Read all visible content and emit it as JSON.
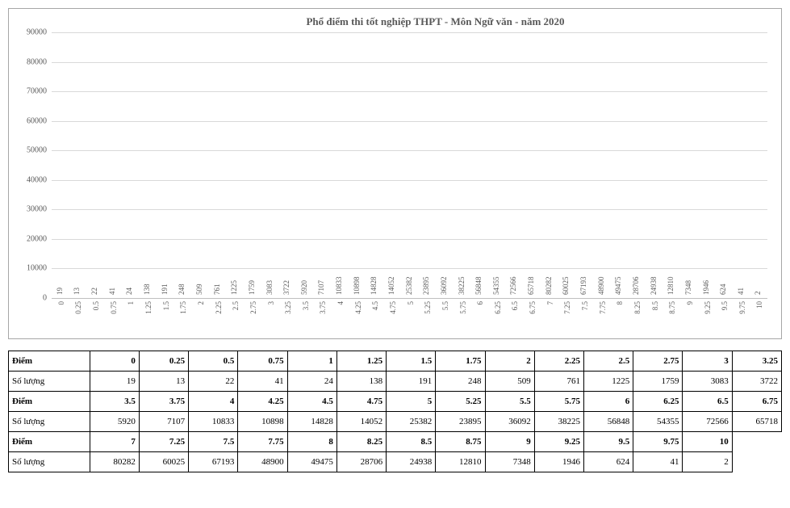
{
  "chart": {
    "type": "bar",
    "title": "Phổ điểm thi tốt nghiệp THPT - Môn Ngữ văn - năm 2020",
    "title_fontsize": 13,
    "title_color": "#595959",
    "bar_color": "#4472c4",
    "grid_color": "#d9d9d9",
    "axis_color": "#bfbfbf",
    "tick_color": "#595959",
    "background_color": "#ffffff",
    "y_max": 90000,
    "y_tick_step": 10000,
    "y_ticks": [
      0,
      10000,
      20000,
      30000,
      40000,
      50000,
      60000,
      70000,
      80000,
      90000
    ],
    "categories": [
      "0",
      "0.25",
      "0.5",
      "0.75",
      "1",
      "1.25",
      "1.5",
      "1.75",
      "2",
      "2.25",
      "2.5",
      "2.75",
      "3",
      "3.25",
      "3.5",
      "3.75",
      "4",
      "4.25",
      "4.5",
      "4.75",
      "5",
      "5.25",
      "5.5",
      "5.75",
      "6",
      "6.25",
      "6.5",
      "6.75",
      "7",
      "7.25",
      "7.5",
      "7.75",
      "8",
      "8.25",
      "8.5",
      "8.75",
      "9",
      "9.25",
      "9.5",
      "9.75",
      "10"
    ],
    "values": [
      19,
      13,
      22,
      41,
      24,
      138,
      191,
      248,
      509,
      761,
      1225,
      1759,
      3083,
      3722,
      5920,
      7107,
      10833,
      10898,
      14828,
      14052,
      25382,
      23895,
      36092,
      38225,
      56848,
      54355,
      72566,
      65718,
      80282,
      60025,
      67193,
      48900,
      49475,
      28706,
      24938,
      12810,
      7348,
      1946,
      624,
      41,
      2
    ],
    "bar_width": 0.6,
    "value_label_fontsize": 9,
    "tick_fontsize": 9
  },
  "table": {
    "row_labels": {
      "score": "Điểm",
      "count": "Số lượng"
    },
    "border_color": "#000000",
    "font_size": 11,
    "groups": [
      {
        "scores": [
          "0",
          "0.25",
          "0.5",
          "0.75",
          "1",
          "1.25",
          "1.5",
          "1.75",
          "2",
          "2.25",
          "2.5",
          "2.75",
          "3",
          "3.25"
        ],
        "counts": [
          19,
          13,
          22,
          41,
          24,
          138,
          191,
          248,
          509,
          761,
          1225,
          1759,
          3083,
          3722
        ]
      },
      {
        "scores": [
          "3.5",
          "3.75",
          "4",
          "4.25",
          "4.5",
          "4.75",
          "5",
          "5.25",
          "5.5",
          "5.75",
          "6",
          "6.25",
          "6.5",
          "6.75"
        ],
        "counts": [
          5920,
          7107,
          10833,
          10898,
          14828,
          14052,
          25382,
          23895,
          36092,
          38225,
          56848,
          54355,
          72566,
          65718
        ]
      },
      {
        "scores": [
          "7",
          "7.25",
          "7.5",
          "7.75",
          "8",
          "8.25",
          "8.5",
          "8.75",
          "9",
          "9.25",
          "9.5",
          "9.75",
          "10"
        ],
        "counts": [
          80282,
          60025,
          67193,
          48900,
          49475,
          28706,
          24938,
          12810,
          7348,
          1946,
          624,
          41,
          2
        ]
      }
    ]
  }
}
